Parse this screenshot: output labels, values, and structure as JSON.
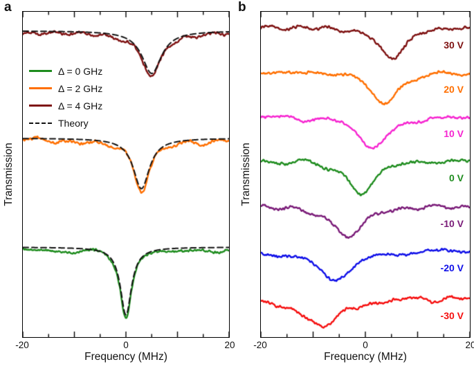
{
  "figure": {
    "background": "#ffffff"
  },
  "panel_a": {
    "label": "a",
    "ylabel": "Transmission",
    "xlabel": "Frequency (MHz)",
    "legend": [
      {
        "label": "Δ = 0 GHz",
        "color": "#1e8c1e",
        "style": "solid"
      },
      {
        "label": "Δ = 2 GHz",
        "color": "#ff6f00",
        "style": "solid"
      },
      {
        "label": "Δ = 4 GHz",
        "color": "#7e1111",
        "style": "solid"
      },
      {
        "label": "Theory",
        "color": "#111111",
        "style": "dashed"
      }
    ]
  },
  "panel_b": {
    "label": "b",
    "ylabel": "Transmission",
    "xlabel": "Frequency (MHz)"
  },
  "chart_data": [
    {
      "type": "line",
      "panel": "a",
      "title": "",
      "xlabel": "Frequency (MHz)",
      "ylabel": "Transmission",
      "xlim": [
        -20,
        20
      ],
      "x_ticks": [
        -20,
        0,
        20
      ],
      "y_units": "arbitrary, curves vertically offset; dashed black = theory fit",
      "theory_color": "#111111",
      "series": [
        {
          "name": "Δ = 4 GHz",
          "color": "#7e1111",
          "dip_center_MHz": 5,
          "dip_halfwidth_MHz": 2.3,
          "depth_frac": 0.135,
          "baseline_frac": 0.065,
          "theory": true
        },
        {
          "name": "Δ = 2 GHz",
          "color": "#ff6f00",
          "dip_center_MHz": 3,
          "dip_halfwidth_MHz": 1.9,
          "depth_frac": 0.16,
          "baseline_frac": 0.395,
          "theory": true
        },
        {
          "name": "Δ = 0 GHz",
          "color": "#1e8c1e",
          "dip_center_MHz": 0,
          "dip_halfwidth_MHz": 1.3,
          "depth_frac": 0.215,
          "baseline_frac": 0.73,
          "theory": true
        }
      ]
    },
    {
      "type": "line",
      "panel": "b",
      "title": "",
      "xlabel": "Frequency (MHz)",
      "ylabel": "Transmission",
      "xlim": [
        -20,
        20
      ],
      "x_ticks": [
        -20,
        0,
        20
      ],
      "y_units": "arbitrary, curves vertically offset; labels = applied voltage",
      "series": [
        {
          "name": "30 V",
          "color": "#7e1111",
          "dip_center_MHz": 5,
          "dip_halfwidth_MHz": 2.8,
          "depth_frac": 0.1,
          "baseline_frac": 0.047
        },
        {
          "name": "20 V",
          "color": "#ff6f00",
          "dip_center_MHz": 4,
          "dip_halfwidth_MHz": 3.0,
          "depth_frac": 0.1,
          "baseline_frac": 0.184
        },
        {
          "name": "10 V",
          "color": "#f624d0",
          "dip_center_MHz": 1.5,
          "dip_halfwidth_MHz": 3.2,
          "depth_frac": 0.105,
          "baseline_frac": 0.32
        },
        {
          "name": "0 V",
          "color": "#1e8c1e",
          "dip_center_MHz": -1,
          "dip_halfwidth_MHz": 3.2,
          "depth_frac": 0.1,
          "baseline_frac": 0.456
        },
        {
          "name": "-10 V",
          "color": "#7a1b78",
          "dip_center_MHz": -3.5,
          "dip_halfwidth_MHz": 3.6,
          "depth_frac": 0.095,
          "baseline_frac": 0.596
        },
        {
          "name": "-20 V",
          "color": "#0f0fe8",
          "dip_center_MHz": -6,
          "dip_halfwidth_MHz": 4.2,
          "depth_frac": 0.09,
          "baseline_frac": 0.733
        },
        {
          "name": "-30 V",
          "color": "#f50f0f",
          "dip_center_MHz": -8.5,
          "dip_halfwidth_MHz": 5.0,
          "depth_frac": 0.085,
          "baseline_frac": 0.878
        }
      ]
    }
  ]
}
